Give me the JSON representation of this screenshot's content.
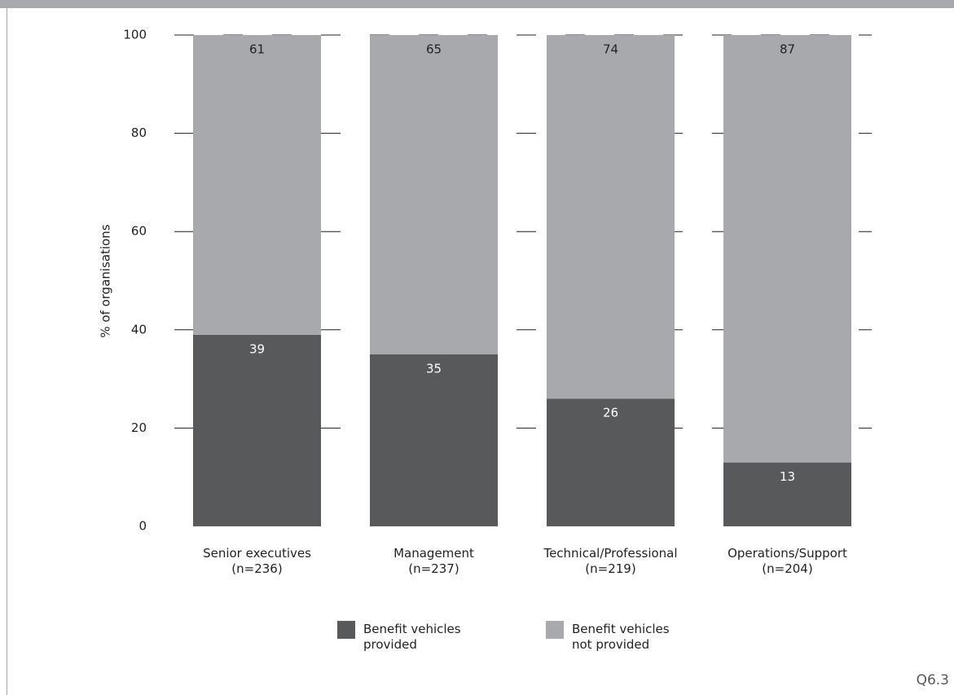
{
  "chart_data": {
    "type": "stacked_bar",
    "y_axis_label": "% of organisations",
    "categories": [
      "Senior executives\n(n=236)",
      "Management\n(n=237)",
      "Technical/Professional\n(n=219)",
      "Operations/Support\n(n=204)"
    ],
    "series": [
      {
        "name": "Benefit vehicles\nprovided",
        "color": "#58595b",
        "label_color": "#ffffff",
        "values": [
          39,
          35,
          26,
          13
        ]
      },
      {
        "name": "Benefit vehicles\nnot provided",
        "color": "#a7a9ac",
        "label_color": "#231f20",
        "values": [
          61,
          65,
          74,
          87
        ]
      }
    ],
    "ylim": [
      0,
      100
    ],
    "yticks": [
      0,
      20,
      40,
      60,
      80,
      100
    ],
    "grid": true,
    "figure_id": "Q6.3"
  }
}
